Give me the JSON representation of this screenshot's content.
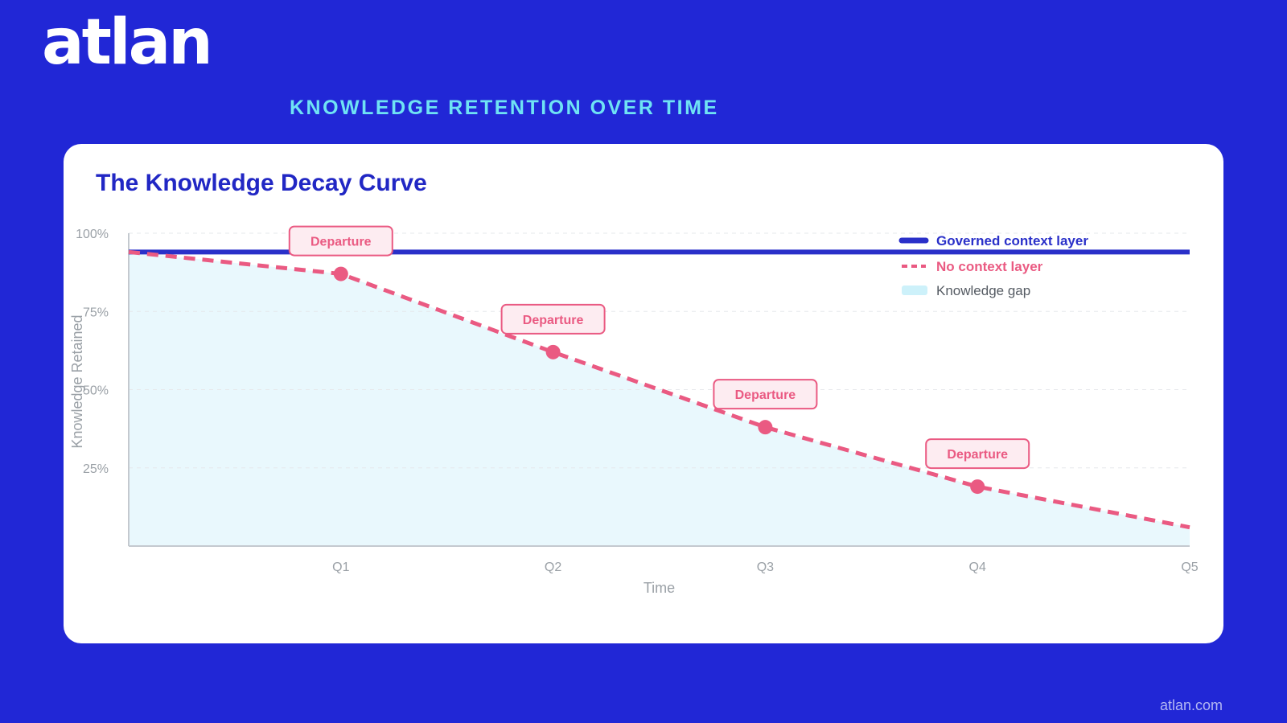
{
  "brand": {
    "logo_text": "atlan",
    "footer_url": "atlan.com"
  },
  "header": {
    "kicker": "KNOWLEDGE RETENTION OVER TIME"
  },
  "colors": {
    "background": "#2127d6",
    "governed": "#2a30c9",
    "no_context": "#ea5a82",
    "gap_fill": "#e9f8fd",
    "kicker": "#6fe3f4"
  },
  "chart_data": {
    "type": "line",
    "title": "The Knowledge Decay Curve",
    "xlabel": "Time",
    "ylabel": "Knowledge Retained",
    "x_range": [
      0,
      5
    ],
    "ylim": [
      0,
      100
    ],
    "x_ticks": [
      {
        "value": 1,
        "label": "Q1"
      },
      {
        "value": 2,
        "label": "Q2"
      },
      {
        "value": 3,
        "label": "Q3"
      },
      {
        "value": 4,
        "label": "Q4"
      },
      {
        "value": 5,
        "label": "Q5"
      }
    ],
    "y_ticks": [
      {
        "value": 100,
        "label": "100%"
      },
      {
        "value": 75,
        "label": "75%"
      },
      {
        "value": 50,
        "label": "50%"
      },
      {
        "value": 25,
        "label": "25%"
      }
    ],
    "grid": "horizontal dashed",
    "legend_position": "top-right",
    "series": [
      {
        "name": "Governed context layer",
        "style": "solid",
        "x": [
          0,
          5
        ],
        "y": [
          94,
          94
        ]
      },
      {
        "name": "No context layer",
        "style": "dashed",
        "x": [
          0,
          1,
          2,
          3,
          4,
          5
        ],
        "y": [
          94,
          87,
          62,
          38,
          19,
          6
        ]
      }
    ],
    "gap_label": "Knowledge gap",
    "annotations": [
      {
        "x": 1,
        "y": 87,
        "label": "Departure"
      },
      {
        "x": 2,
        "y": 62,
        "label": "Departure"
      },
      {
        "x": 3,
        "y": 38,
        "label": "Departure"
      },
      {
        "x": 4,
        "y": 19,
        "label": "Departure"
      }
    ]
  }
}
